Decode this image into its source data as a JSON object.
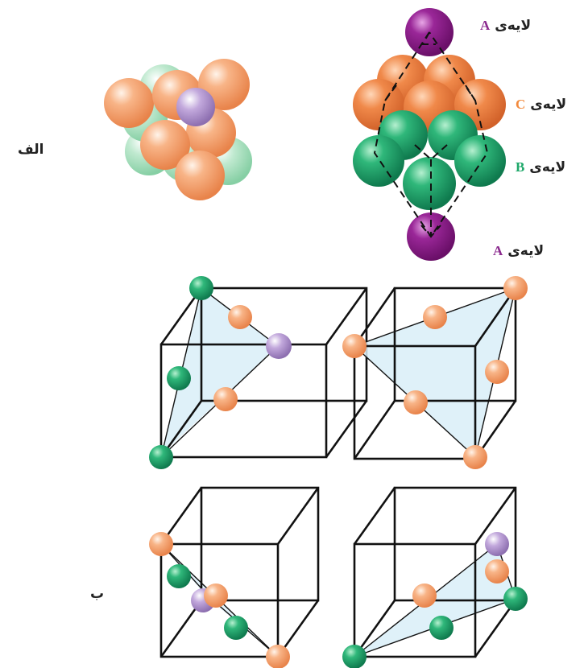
{
  "figure": {
    "part_a_label": "الف",
    "part_b_label": "ب",
    "layers": [
      {
        "word": "لایه‌ی",
        "letter": "A",
        "color": "#8b2a8e"
      },
      {
        "word": "لایه‌ی",
        "letter": "C",
        "color": "#f28a3c"
      },
      {
        "word": "لایه‌ی",
        "letter": "B",
        "color": "#1fa86a"
      },
      {
        "word": "لایه‌ی",
        "letter": "A",
        "color": "#8b2a8e"
      }
    ]
  },
  "colors": {
    "orange_sphere": "#f4a06a",
    "green_sphere": "#7fd1a4",
    "purple_sphere": "#a98bc8",
    "dark_purple_sphere": "#8b1a8a",
    "dark_green_sphere": "#1a9c6a",
    "dark_orange_sphere": "#ee7a35",
    "plane_fill": "#d9eef8",
    "cube_line": "#111111"
  }
}
